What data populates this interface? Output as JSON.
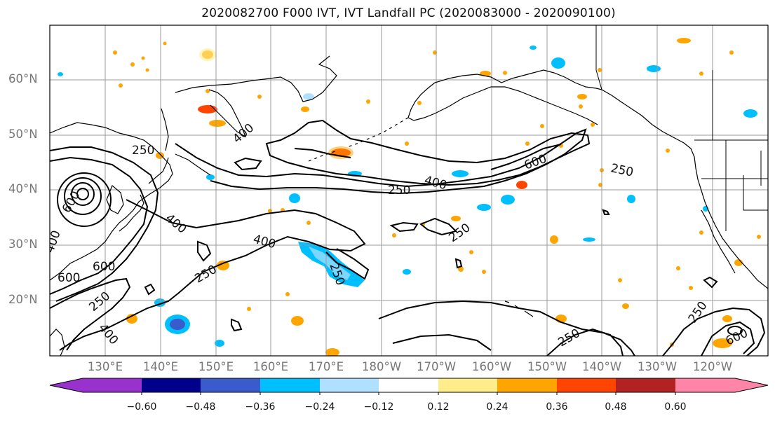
{
  "title": "2020082700 F000 IVT, IVT Landfall PC (2020083000 - 2020090100)",
  "map": {
    "lat_labels": [
      "60°N",
      "50°N",
      "40°N",
      "30°N",
      "20°N"
    ],
    "lon_labels": [
      "130°E",
      "140°E",
      "150°E",
      "160°E",
      "170°E",
      "180°W",
      "170°W",
      "160°W",
      "150°W",
      "140°W",
      "130°W",
      "120°W"
    ],
    "contour_labels": [
      "250",
      "400",
      "600",
      "250",
      "400",
      "600",
      "250",
      "400",
      "250",
      "400",
      "250",
      "600",
      "250",
      "400",
      "250",
      "400",
      "600",
      "250",
      "600",
      "250"
    ],
    "contour_levels": [
      250,
      400,
      600
    ]
  },
  "colorbar": {
    "tick_labels": [
      "−0.60",
      "−0.48",
      "−0.36",
      "−0.24",
      "−0.12",
      "0.12",
      "0.24",
      "0.36",
      "0.48",
      "0.60"
    ],
    "colors": [
      "#9932cc",
      "#00008b",
      "#3a5bcb",
      "#00bfff",
      "#b0e0ff",
      "#ffffff",
      "#ffec8b",
      "#ffa500",
      "#ff4500",
      "#b22222",
      "#ff85a8"
    ]
  }
}
